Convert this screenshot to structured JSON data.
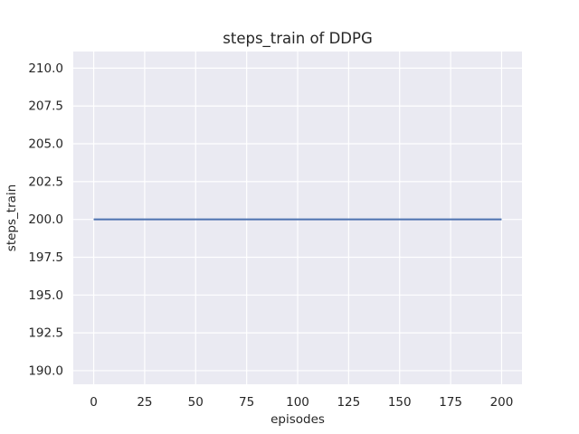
{
  "chart_data": {
    "type": "line",
    "title": "steps_train of DDPG",
    "xlabel": "episodes",
    "ylabel": "steps_train",
    "xlim": [
      -10,
      210
    ],
    "ylim": [
      189.1,
      211.1
    ],
    "x_ticks": [
      0,
      25,
      50,
      75,
      100,
      125,
      150,
      175,
      200
    ],
    "y_ticks": [
      190.0,
      192.5,
      195.0,
      197.5,
      200.0,
      202.5,
      205.0,
      207.5,
      210.0
    ],
    "y_tick_decimals": 1,
    "grid": true,
    "legend": "none",
    "series": [
      {
        "name": "steps_train",
        "color": "#4c72b0",
        "line_width": 2,
        "x": [
          0,
          200
        ],
        "y": [
          200,
          200
        ]
      }
    ],
    "style": {
      "figure_background": "#ffffff",
      "axes_background": "#eaeaf2",
      "grid_color": "#ffffff",
      "text_color": "#262626"
    }
  }
}
